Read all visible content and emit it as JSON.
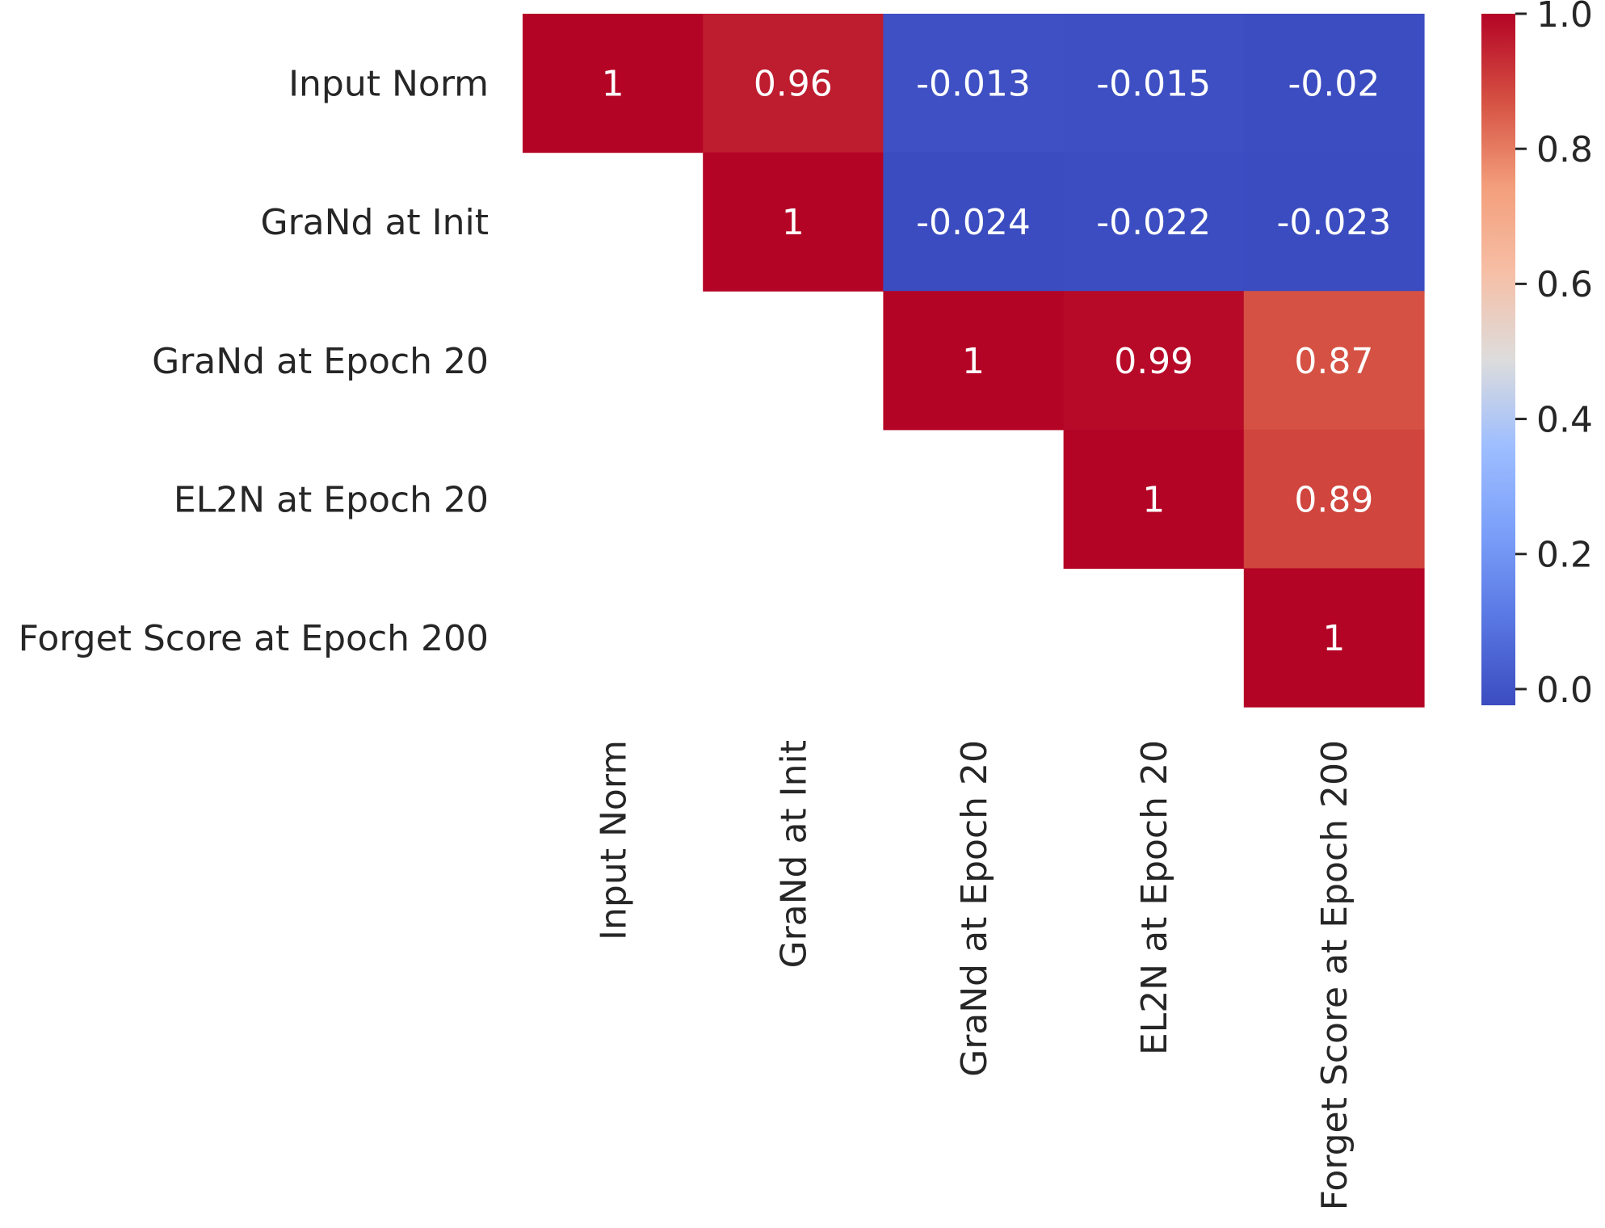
{
  "chart_data": {
    "type": "heatmap",
    "row_labels": [
      "Input Norm",
      "GraNd at Init",
      "GraNd at Epoch 20",
      "EL2N at Epoch 20",
      "Forget Score at Epoch 200"
    ],
    "col_labels": [
      "Input Norm",
      "GraNd at Init",
      "GraNd at Epoch 20",
      "EL2N at Epoch 20",
      "Forget Score at Epoch 200"
    ],
    "values": [
      [
        1,
        0.96,
        -0.013,
        -0.015,
        -0.02
      ],
      [
        null,
        1,
        -0.024,
        -0.022,
        -0.023
      ],
      [
        null,
        null,
        1,
        0.99,
        0.87
      ],
      [
        null,
        null,
        null,
        1,
        0.89
      ],
      [
        null,
        null,
        null,
        null,
        1
      ]
    ],
    "annotations": [
      [
        "1",
        "0.96",
        "-0.013",
        "-0.015",
        "-0.02"
      ],
      [
        null,
        "1",
        "-0.024",
        "-0.022",
        "-0.023"
      ],
      [
        null,
        null,
        "1",
        "0.99",
        "0.87"
      ],
      [
        null,
        null,
        null,
        "1",
        "0.89"
      ],
      [
        null,
        null,
        null,
        null,
        "1"
      ]
    ],
    "mask": "lower-triangle",
    "colormap": "coolwarm",
    "colorbar": {
      "vmin": -0.024,
      "vmax": 1.0,
      "ticks": [
        0.0,
        0.2,
        0.4,
        0.6,
        0.8,
        1.0
      ],
      "tick_labels": [
        "0.0",
        "0.2",
        "0.4",
        "0.6",
        "0.8",
        "1.0"
      ]
    },
    "title": "",
    "xlabel": "",
    "ylabel": ""
  }
}
